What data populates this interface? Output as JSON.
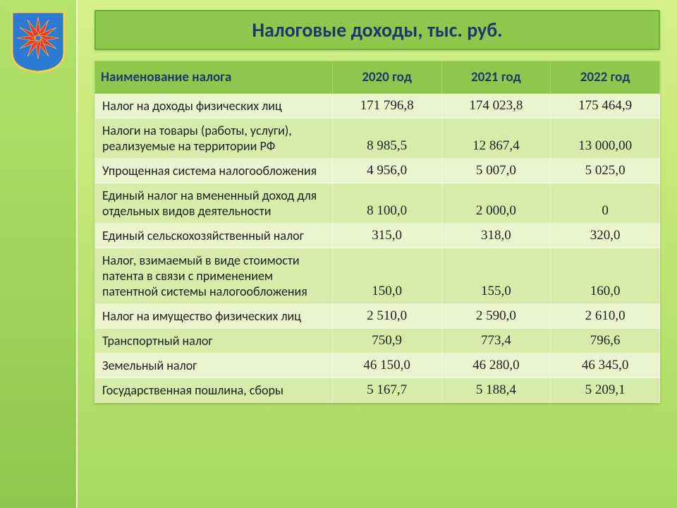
{
  "title": "Налоговые доходы, тыс. руб.",
  "emblem": {
    "shield_fill": "#2a7bd1",
    "shield_stroke": "#f3d24a",
    "star_fill": "#e63b2e",
    "star_stroke": "#f3d24a"
  },
  "table": {
    "columns": [
      "Наименование налога",
      "2020 год",
      "2021 год",
      "2022 год"
    ],
    "col_widths_pct": [
      42,
      19.3,
      19.3,
      19.3
    ],
    "header_bg": "#8cc84b",
    "header_color": "#1a3a6e",
    "row_odd_bg": "#eaf5d0",
    "row_even_bg": "#d7ecab",
    "rows": [
      {
        "name": "Налог  на  доходы  физических  лиц",
        "y2020": "171 796,8",
        "y2021": "174 023,8",
        "y2022": "175 464,9"
      },
      {
        "name": "Налоги на товары (работы, услуги), реализуемые на территории РФ",
        "y2020": "8 985,5",
        "y2021": "12 867,4",
        "y2022": "13 000,00"
      },
      {
        "name": "Упрощенная система налогообложения",
        "y2020": "4 956,0",
        "y2021": "5 007,0",
        "y2022": "5 025,0"
      },
      {
        "name": "Единый  налог  на  вмененный  доход  для  отдельных  видов  деятельности",
        "y2020": "8 100,0",
        "y2021": "2 000,0",
        "y2022": "0"
      },
      {
        "name": "Единый  сельскохозяйственный  налог",
        "y2020": "315,0",
        "y2021": "318,0",
        "y2022": "320,0"
      },
      {
        "name": "Налог,  взимаемый  в  виде  стоимости  патента в связи с применением патентной системы налогообложения",
        "y2020": "150,0",
        "y2021": "155,0",
        "y2022": "160,0"
      },
      {
        "name": "Налог  на  имущество  физических  лиц",
        "y2020": "2 510,0",
        "y2021": "2 590,0",
        "y2022": "2 610,0"
      },
      {
        "name": "Транспортный  налог",
        "y2020": "750,9",
        "y2021": "773,4",
        "y2022": "796,6"
      },
      {
        "name": "Земельный  налог",
        "y2020": "46 150,0",
        "y2021": "46 280,0",
        "y2022": "46 345,0"
      },
      {
        "name": "Государственная  пошлина, сборы",
        "y2020": "5 167,7",
        "y2021": "5 188,4",
        "y2022": "5 209,1"
      }
    ]
  },
  "colors": {
    "page_grad_top": "#d4f08a",
    "page_grad_bottom": "#a8d95e",
    "sidebar_grad_top": "#b5e26a",
    "sidebar_grad_bottom": "#8cc84b",
    "title_bg": "#8cc84b",
    "title_border": "#6fae3c",
    "title_text": "#1a3a6e"
  },
  "fonts": {
    "body_family": "Calibri, Arial, sans-serif",
    "value_family": "Times New Roman, serif",
    "title_size_pt": 21,
    "header_size_pt": 14,
    "body_size_pt": 13
  }
}
